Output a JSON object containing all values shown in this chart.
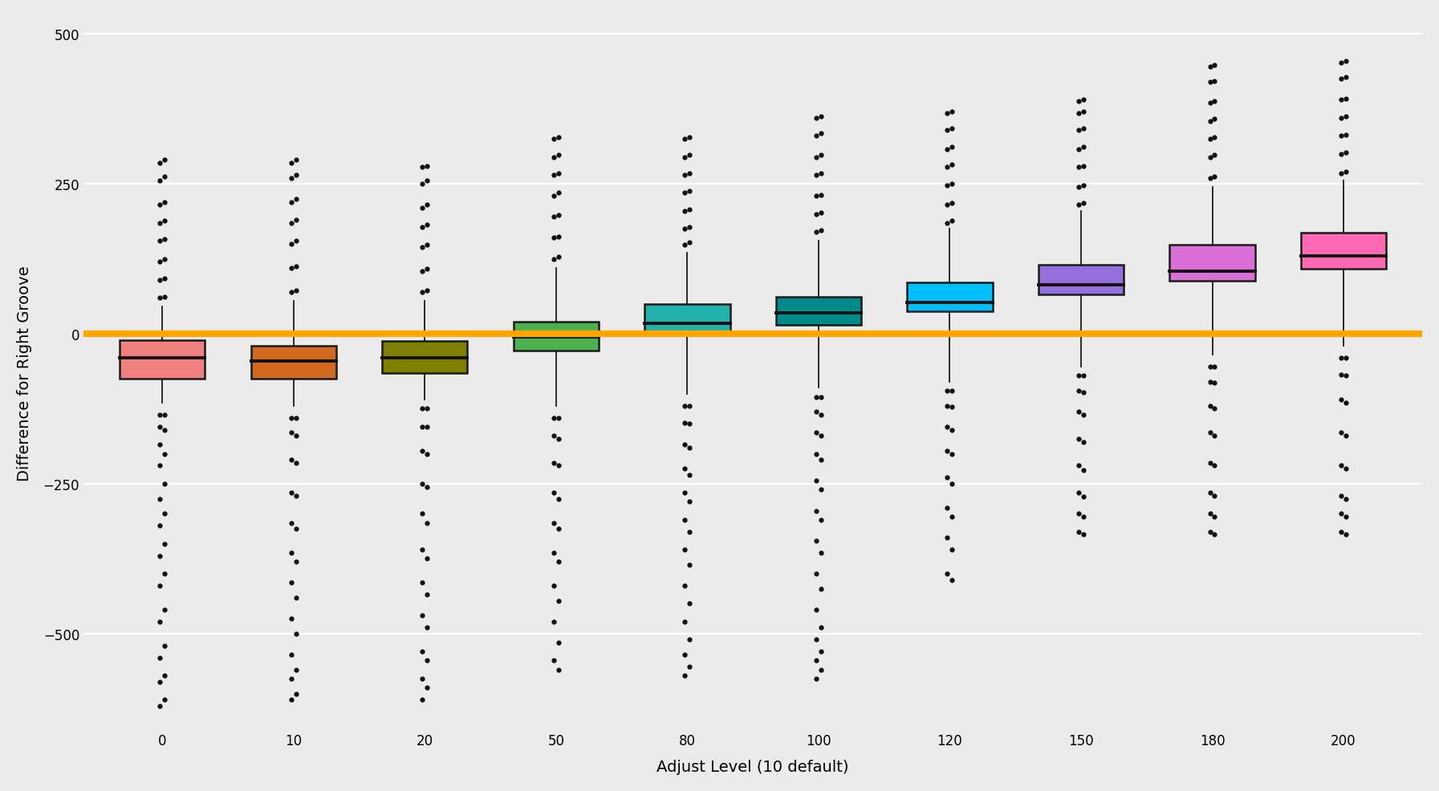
{
  "adjust_levels": [
    0,
    10,
    20,
    50,
    80,
    100,
    120,
    150,
    180,
    200
  ],
  "box_colors": [
    "#F08080",
    "#D2691E",
    "#808000",
    "#4CAF50",
    "#20B2AA",
    "#008B8B",
    "#00BFFF",
    "#9370DB",
    "#DA70D6",
    "#FF69B4"
  ],
  "medians": [
    -40,
    -45,
    -40,
    -5,
    18,
    35,
    52,
    82,
    105,
    130
  ],
  "q1": [
    -75,
    -75,
    -65,
    -28,
    3,
    15,
    38,
    65,
    88,
    108
  ],
  "q3": [
    -10,
    -20,
    -12,
    20,
    50,
    62,
    85,
    115,
    148,
    168
  ],
  "whisker_low": [
    -115,
    -120,
    -110,
    -120,
    -100,
    -90,
    -80,
    -55,
    -35,
    -20
  ],
  "whisker_high": [
    45,
    55,
    55,
    110,
    135,
    155,
    175,
    205,
    245,
    255
  ],
  "outlier_low_clusters": [
    [
      [
        -135,
        -155,
        -185,
        -220,
        -275,
        -320,
        -370,
        -420,
        -480,
        -540,
        -580,
        -620
      ],
      [
        -135,
        -160,
        -200,
        -250,
        -300,
        -350,
        -400,
        -460,
        -520,
        -570,
        -610
      ]
    ],
    [
      [
        -140,
        -165,
        -210,
        -265,
        -315,
        -365,
        -415,
        -475,
        -535,
        -575,
        -610
      ],
      [
        -140,
        -170,
        -215,
        -270,
        -325,
        -380,
        -440,
        -500,
        -560,
        -600
      ]
    ],
    [
      [
        -125,
        -155,
        -195,
        -250,
        -300,
        -360,
        -415,
        -470,
        -530,
        -575,
        -610
      ],
      [
        -125,
        -155,
        -200,
        -255,
        -315,
        -375,
        -435,
        -490,
        -545,
        -590
      ]
    ],
    [
      [
        -140,
        -170,
        -215,
        -265,
        -315,
        -365,
        -420,
        -480,
        -545
      ],
      [
        -140,
        -175,
        -220,
        -275,
        -325,
        -380,
        -445,
        -515,
        -560
      ]
    ],
    [
      [
        -120,
        -148,
        -185,
        -225,
        -265,
        -310,
        -360,
        -420,
        -480,
        -535,
        -570
      ],
      [
        -120,
        -150,
        -190,
        -235,
        -280,
        -330,
        -385,
        -450,
        -510,
        -555
      ]
    ],
    [
      [
        -105,
        -130,
        -165,
        -200,
        -245,
        -295,
        -345,
        -400,
        -460,
        -510,
        -545,
        -575
      ],
      [
        -105,
        -135,
        -170,
        -210,
        -260,
        -310,
        -365,
        -425,
        -490,
        -530,
        -560
      ]
    ],
    [
      [
        -95,
        -120,
        -155,
        -195,
        -240,
        -290,
        -340,
        -400
      ],
      [
        -95,
        -122,
        -160,
        -200,
        -250,
        -305,
        -360,
        -410
      ]
    ],
    [
      [
        -70,
        -95,
        -130,
        -175,
        -220,
        -265,
        -300,
        -330
      ],
      [
        -70,
        -98,
        -135,
        -180,
        -228,
        -272,
        -305,
        -335
      ]
    ],
    [
      [
        -55,
        -80,
        -120,
        -165,
        -215,
        -265,
        -300,
        -330
      ],
      [
        -55,
        -82,
        -125,
        -170,
        -220,
        -270,
        -305,
        -335
      ]
    ],
    [
      [
        -40,
        -68,
        -110,
        -165,
        -220,
        -270,
        -300,
        -330
      ],
      [
        -40,
        -70,
        -115,
        -170,
        -225,
        -275,
        -305,
        -335
      ]
    ]
  ],
  "outlier_high_clusters": [
    [
      [
        60,
        90,
        120,
        155,
        185,
        215,
        255,
        285
      ],
      [
        62,
        92,
        125,
        158,
        188,
        220,
        262,
        290
      ]
    ],
    [
      [
        70,
        110,
        150,
        185,
        220,
        260,
        285
      ],
      [
        72,
        112,
        155,
        190,
        225,
        265,
        290
      ]
    ],
    [
      [
        70,
        105,
        145,
        178,
        210,
        250,
        278
      ],
      [
        72,
        108,
        148,
        182,
        215,
        255,
        280
      ]
    ],
    [
      [
        125,
        160,
        195,
        230,
        265,
        295,
        325
      ],
      [
        128,
        162,
        198,
        235,
        268,
        298,
        328
      ]
    ],
    [
      [
        148,
        175,
        205,
        235,
        265,
        295,
        325
      ],
      [
        152,
        178,
        208,
        238,
        268,
        298,
        328
      ]
    ],
    [
      [
        170,
        200,
        230,
        265,
        295,
        330,
        360
      ],
      [
        172,
        202,
        232,
        268,
        298,
        335,
        362
      ]
    ],
    [
      [
        185,
        215,
        248,
        278,
        308,
        340,
        368
      ],
      [
        188,
        218,
        250,
        282,
        312,
        342,
        370
      ]
    ],
    [
      [
        215,
        245,
        278,
        308,
        340,
        368,
        388
      ],
      [
        218,
        248,
        280,
        312,
        342,
        370,
        390
      ]
    ],
    [
      [
        260,
        295,
        325,
        355,
        385,
        420,
        445
      ],
      [
        262,
        298,
        328,
        358,
        388,
        422,
        448
      ]
    ],
    [
      [
        268,
        300,
        330,
        360,
        390,
        425,
        452
      ],
      [
        270,
        302,
        332,
        362,
        392,
        428,
        455
      ]
    ]
  ],
  "ylabel": "Difference for Right Groove",
  "xlabel": "Adjust Level (10 default)",
  "ylim": [
    -660,
    530
  ],
  "yticks": [
    -500,
    -250,
    0,
    250,
    500
  ],
  "hline_y": 0,
  "hline_color": "#FFA500",
  "background_color": "#EBEBEB",
  "grid_color": "#FFFFFF",
  "box_width": 0.65,
  "axis_label_fontsize": 14,
  "tick_fontsize": 12
}
